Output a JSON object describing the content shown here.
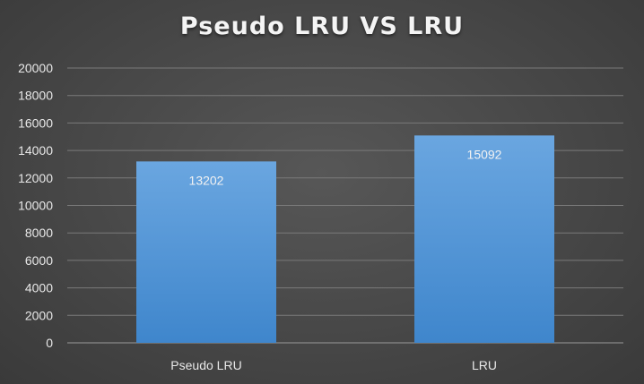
{
  "chart_data": {
    "type": "bar",
    "title": "Pseudo LRU VS LRU",
    "categories": [
      "Pseudo LRU",
      "LRU"
    ],
    "values": [
      13202,
      15092
    ],
    "ylim": [
      0,
      20000
    ],
    "yticks": [
      0,
      2000,
      4000,
      6000,
      8000,
      10000,
      12000,
      14000,
      16000,
      18000,
      20000
    ],
    "data_labels": [
      "13202",
      "15092"
    ],
    "grid": true,
    "legend": "none",
    "colors": {
      "background": "#4a4a4a",
      "bar_top": "#6aa6e0",
      "bar_bottom": "#3f86cc",
      "gridline": "#7a7a7a",
      "text": "#e8e8e8"
    }
  }
}
